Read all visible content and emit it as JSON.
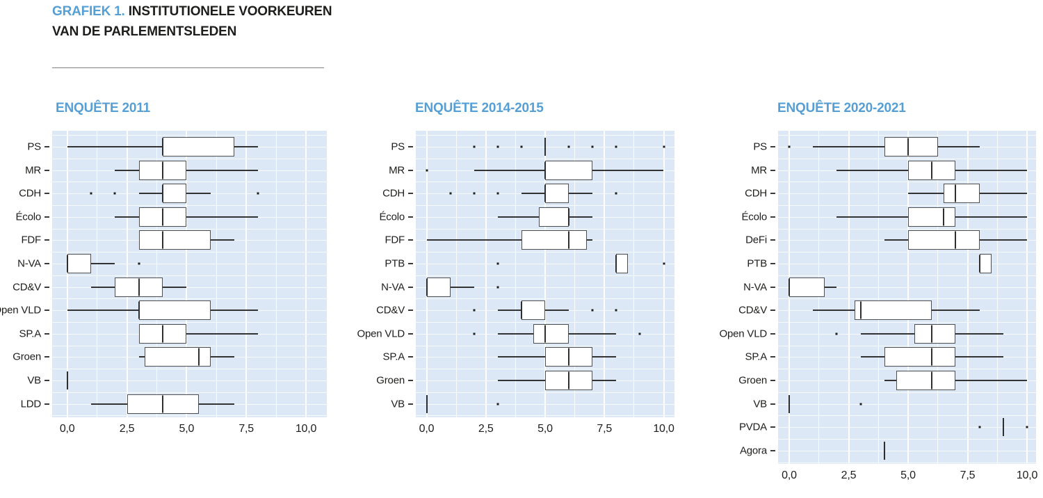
{
  "header": {
    "prefix": "GRAFIEK 1.",
    "title_line1": "INSTITUTIONELE VOORKEUREN",
    "title_line2": "VAN DE PARLEMENTSLEDEN"
  },
  "colors": {
    "accent_blue": "#569fd5",
    "plot_background": "#dce8f5",
    "gridline": "#ffffff",
    "ink": "#1d1d1b"
  },
  "chart_data": [
    {
      "type": "boxplot",
      "orientation": "horizontal",
      "title": "ENQUÊTE 2011",
      "x_range": [
        0,
        10
      ],
      "grid_interval": 1.25,
      "x_ticks": [
        {
          "label": "0,0",
          "value": 0
        },
        {
          "label": "2,5",
          "value": 2.5
        },
        {
          "label": "5,0",
          "value": 5
        },
        {
          "label": "7,5",
          "value": 7.5
        },
        {
          "label": "10,0",
          "value": 10
        }
      ],
      "rows": [
        {
          "label": "PS",
          "min": 0,
          "q1": 4,
          "median": 4,
          "q3": 7,
          "max": 8,
          "outliers": []
        },
        {
          "label": "MR",
          "min": 2,
          "q1": 3,
          "median": 4,
          "q3": 5,
          "max": 8,
          "outliers": []
        },
        {
          "label": "CDH",
          "min": 3,
          "q1": 4,
          "median": 4,
          "q3": 5,
          "max": 6,
          "outliers": [
            1,
            2,
            8
          ]
        },
        {
          "label": "Écolo",
          "min": 2,
          "q1": 3,
          "median": 4,
          "q3": 5,
          "max": 8,
          "outliers": []
        },
        {
          "label": "FDF",
          "min": 3,
          "q1": 3,
          "median": 4,
          "q3": 6,
          "max": 7,
          "outliers": []
        },
        {
          "label": "N-VA",
          "min": 0,
          "q1": 0,
          "median": 0,
          "q3": 1,
          "max": 2,
          "outliers": [
            3
          ]
        },
        {
          "label": "CD&V",
          "min": 1,
          "q1": 2,
          "median": 3,
          "q3": 4,
          "max": 5,
          "outliers": []
        },
        {
          "label": "Open VLD",
          "min": 0,
          "q1": 3,
          "median": 3,
          "q3": 6,
          "max": 8,
          "outliers": []
        },
        {
          "label": "SP.A",
          "min": 3,
          "q1": 3,
          "median": 4,
          "q3": 5,
          "max": 8,
          "outliers": []
        },
        {
          "label": "Groen",
          "min": 3,
          "q1": 3.25,
          "median": 5.5,
          "q3": 6,
          "max": 7,
          "outliers": []
        },
        {
          "label": "VB",
          "min": 0,
          "q1": 0,
          "median": 0,
          "q3": 0,
          "max": 0,
          "outliers": []
        },
        {
          "label": "LDD",
          "min": 1,
          "q1": 2.5,
          "median": 4,
          "q3": 5.5,
          "max": 7,
          "outliers": []
        }
      ]
    },
    {
      "type": "boxplot",
      "orientation": "horizontal",
      "title": "ENQUÊTE 2014-2015",
      "x_range": [
        0,
        10
      ],
      "grid_interval": 1.25,
      "x_ticks": [
        {
          "label": "0,0",
          "value": 0
        },
        {
          "label": "2,5",
          "value": 2.5
        },
        {
          "label": "5,0",
          "value": 5
        },
        {
          "label": "7,5",
          "value": 7.5
        },
        {
          "label": "10,0",
          "value": 10
        }
      ],
      "rows": [
        {
          "label": "PS",
          "min": 5,
          "q1": 5,
          "median": 5,
          "q3": 5,
          "max": 5,
          "outliers": [
            2,
            3,
            4,
            6,
            7,
            8,
            10
          ]
        },
        {
          "label": "MR",
          "min": 2,
          "q1": 5,
          "median": 5,
          "q3": 7,
          "max": 10,
          "outliers": [
            0
          ]
        },
        {
          "label": "CDH",
          "min": 4,
          "q1": 5,
          "median": 5,
          "q3": 6,
          "max": 7,
          "outliers": [
            1,
            2,
            3,
            8
          ]
        },
        {
          "label": "Écolo",
          "min": 3,
          "q1": 4.75,
          "median": 6,
          "q3": 6,
          "max": 7,
          "outliers": []
        },
        {
          "label": "FDF",
          "min": 0,
          "q1": 4,
          "median": 6,
          "q3": 6.75,
          "max": 7,
          "outliers": []
        },
        {
          "label": "PTB",
          "min": 8,
          "q1": 8,
          "median": 8,
          "q3": 8.5,
          "max": 8.5,
          "outliers": [
            3,
            10
          ]
        },
        {
          "label": "N-VA",
          "min": 0,
          "q1": 0,
          "median": 0,
          "q3": 1,
          "max": 2,
          "outliers": [
            3
          ]
        },
        {
          "label": "CD&V",
          "min": 3,
          "q1": 4,
          "median": 4,
          "q3": 5,
          "max": 6,
          "outliers": [
            2,
            7,
            8
          ]
        },
        {
          "label": "Open VLD",
          "min": 3,
          "q1": 4.5,
          "median": 5,
          "q3": 6,
          "max": 8,
          "outliers": [
            2,
            9
          ]
        },
        {
          "label": "SP.A",
          "min": 3,
          "q1": 5,
          "median": 6,
          "q3": 7,
          "max": 8,
          "outliers": []
        },
        {
          "label": "Groen",
          "min": 3,
          "q1": 5,
          "median": 6,
          "q3": 7,
          "max": 8,
          "outliers": []
        },
        {
          "label": "VB",
          "min": 0,
          "q1": 0,
          "median": 0,
          "q3": 0,
          "max": 0,
          "outliers": [
            3
          ]
        }
      ]
    },
    {
      "type": "boxplot",
      "orientation": "horizontal",
      "title": "ENQUÊTE 2020-2021",
      "x_range": [
        0,
        10
      ],
      "grid_interval": 1.25,
      "x_ticks": [
        {
          "label": "0,0",
          "value": 0
        },
        {
          "label": "2,5",
          "value": 2.5
        },
        {
          "label": "5,0",
          "value": 5
        },
        {
          "label": "7,5",
          "value": 7.5
        },
        {
          "label": "10,0",
          "value": 10
        }
      ],
      "rows": [
        {
          "label": "PS",
          "min": 1,
          "q1": 4,
          "median": 5,
          "q3": 6.25,
          "max": 8,
          "outliers": [
            0
          ]
        },
        {
          "label": "MR",
          "min": 2,
          "q1": 5,
          "median": 6,
          "q3": 7,
          "max": 10,
          "outliers": []
        },
        {
          "label": "CDH",
          "min": 5,
          "q1": 6.5,
          "median": 7,
          "q3": 8,
          "max": 10,
          "outliers": []
        },
        {
          "label": "Écolo",
          "min": 2,
          "q1": 5,
          "median": 6.5,
          "q3": 7,
          "max": 10,
          "outliers": []
        },
        {
          "label": "DeFi",
          "min": 4,
          "q1": 5,
          "median": 7,
          "q3": 8,
          "max": 10,
          "outliers": []
        },
        {
          "label": "PTB",
          "min": 8,
          "q1": 8,
          "median": 8,
          "q3": 8.5,
          "max": 8.5,
          "outliers": []
        },
        {
          "label": "N-VA",
          "min": 0,
          "q1": 0,
          "median": 0,
          "q3": 1.5,
          "max": 2,
          "outliers": []
        },
        {
          "label": "CD&V",
          "min": 1,
          "q1": 2.75,
          "median": 3,
          "q3": 6,
          "max": 8,
          "outliers": []
        },
        {
          "label": "Open VLD",
          "min": 3,
          "q1": 5.25,
          "median": 6,
          "q3": 7,
          "max": 9,
          "outliers": [
            2
          ]
        },
        {
          "label": "SP.A",
          "min": 3,
          "q1": 4,
          "median": 6,
          "q3": 7,
          "max": 9,
          "outliers": []
        },
        {
          "label": "Groen",
          "min": 4,
          "q1": 4.5,
          "median": 6,
          "q3": 7,
          "max": 10,
          "outliers": []
        },
        {
          "label": "VB",
          "min": 0,
          "q1": 0,
          "median": 0,
          "q3": 0,
          "max": 0,
          "outliers": [
            3
          ]
        },
        {
          "label": "PVDA",
          "min": 9,
          "q1": 9,
          "median": 9,
          "q3": 9,
          "max": 9,
          "outliers": [
            8,
            10
          ]
        },
        {
          "label": "Agora",
          "min": 4,
          "q1": 4,
          "median": 4,
          "q3": 4,
          "max": 4,
          "outliers": []
        }
      ]
    }
  ]
}
